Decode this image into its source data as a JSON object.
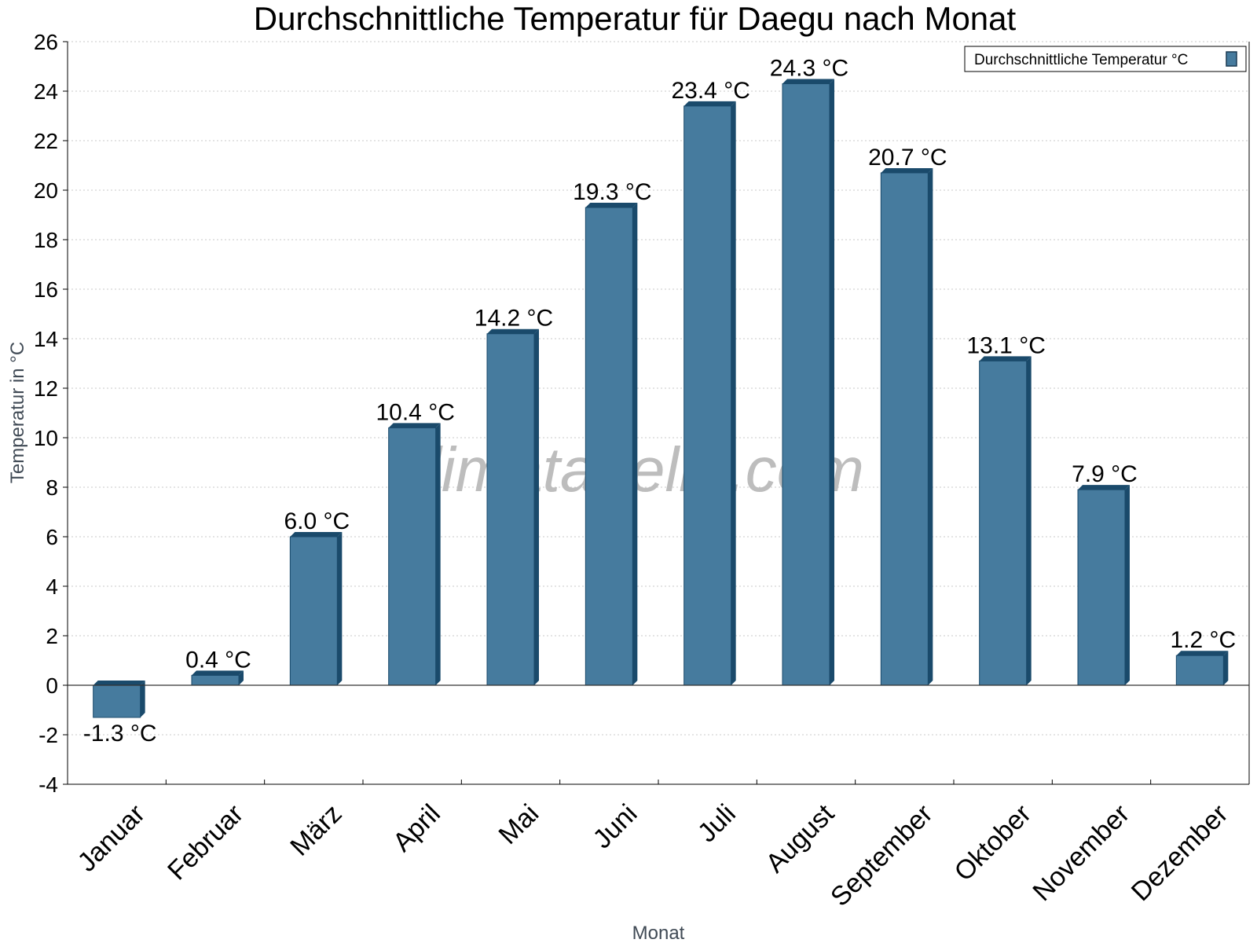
{
  "chart_data": {
    "type": "bar",
    "title": "Durchschnittliche Temperatur für Daegu nach Monat",
    "xlabel": "Monat",
    "ylabel": "Temperatur in °C",
    "categories": [
      "Januar",
      "Februar",
      "März",
      "April",
      "Mai",
      "Juni",
      "Juli",
      "August",
      "September",
      "Oktober",
      "November",
      "Dezember"
    ],
    "series": [
      {
        "name": "Durchschnittliche Temperatur °C",
        "values": [
          -1.3,
          0.4,
          6.0,
          10.4,
          14.2,
          19.3,
          23.4,
          24.3,
          20.7,
          13.1,
          7.9,
          1.2
        ],
        "labels": [
          "-1.3 °C",
          "0.4 °C",
          "6.0 °C",
          "10.4 °C",
          "14.2 °C",
          "19.3 °C",
          "23.4 °C",
          "24.3 °C",
          "20.7 °C",
          "13.1 °C",
          "7.9 °C",
          "1.2 °C"
        ],
        "color": "#467b9e"
      }
    ],
    "ylim": [
      -4,
      26
    ],
    "yticks": [
      -4,
      -2,
      0,
      2,
      4,
      6,
      8,
      10,
      12,
      14,
      16,
      18,
      20,
      22,
      24,
      26
    ],
    "grid": true,
    "legend_position": "top-right",
    "watermark": "klimatabelle.com"
  }
}
